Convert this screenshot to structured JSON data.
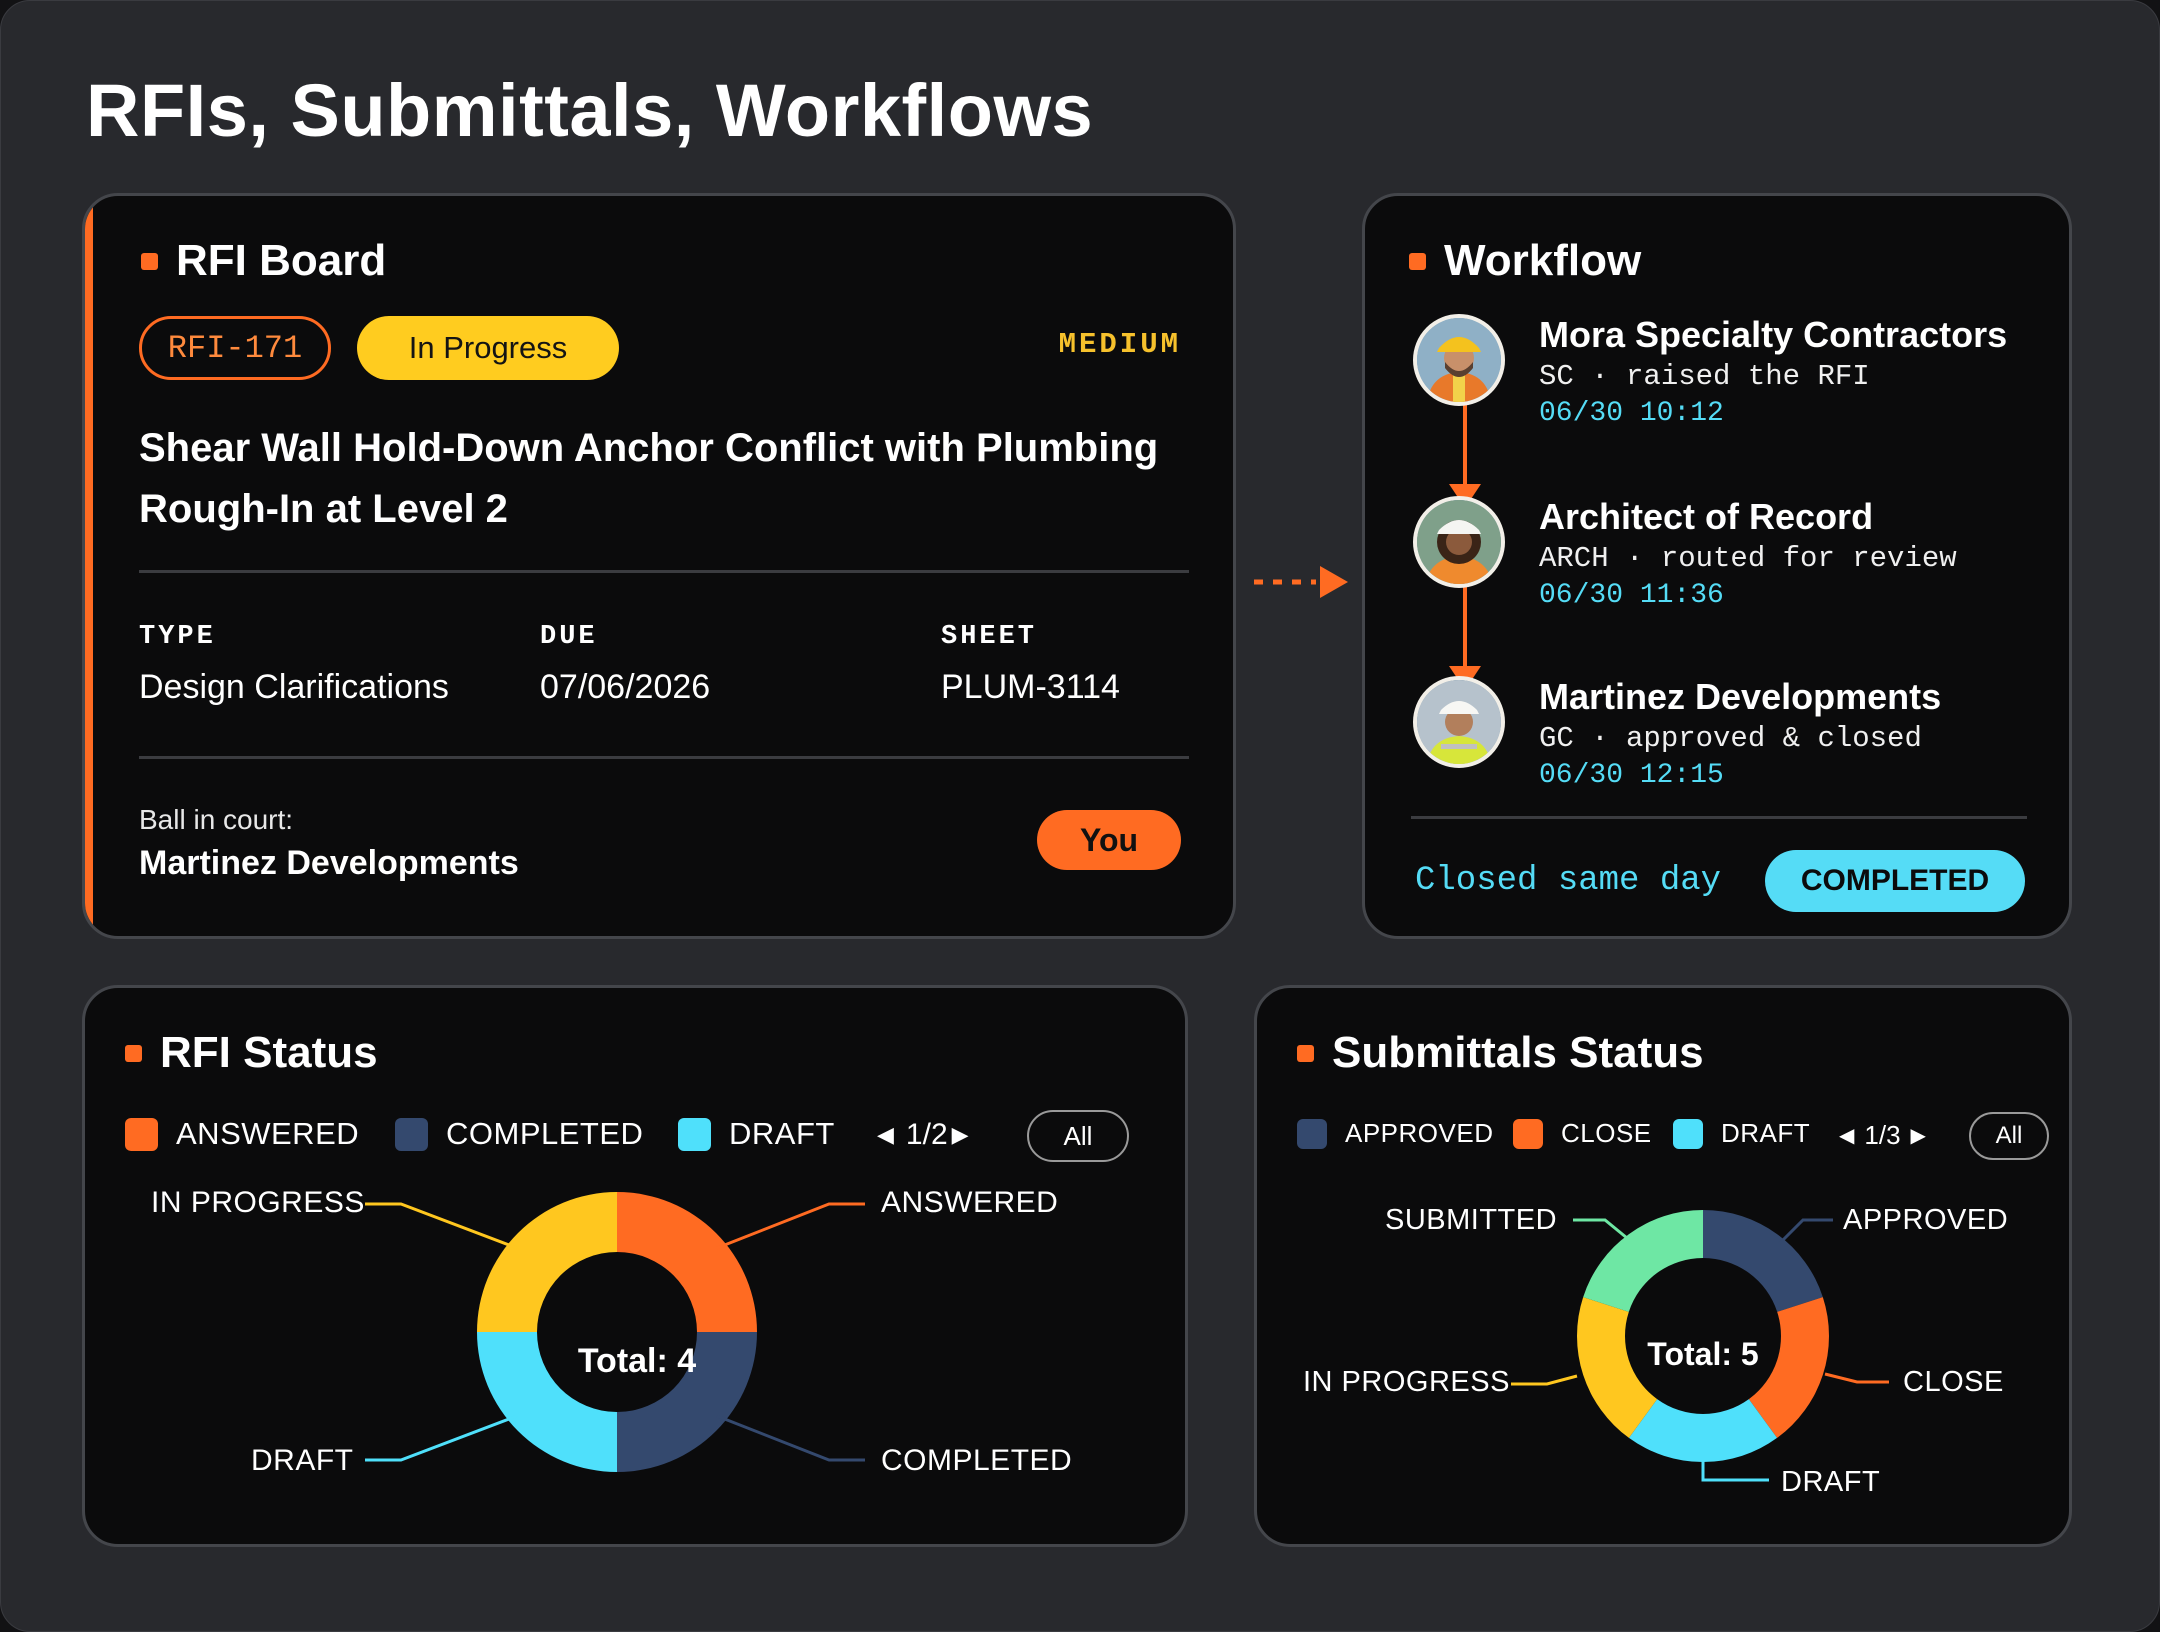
{
  "page": {
    "title": "RFIs, Submittals, Workflows"
  },
  "rfi_board": {
    "title": "RFI Board",
    "id": "RFI-171",
    "status": "In Progress",
    "priority": "MEDIUM",
    "subject": "Shear Wall Hold-Down Anchor Conflict with Plumbing Rough-In at Level 2",
    "meta": [
      {
        "label": "TYPE",
        "value": "Design Clarifications"
      },
      {
        "label": "DUE",
        "value": "07/06/2026"
      },
      {
        "label": "SHEET",
        "value": "PLUM-3114"
      }
    ],
    "ball_in_court_label": "Ball in court:",
    "ball_in_court_value": "Martinez Developments",
    "you_label": "You"
  },
  "workflow": {
    "title": "Workflow",
    "steps": [
      {
        "name": "Mora Specialty Contractors",
        "role": "SC · raised the RFI",
        "time": "06/30 10:12",
        "avatar": "worker-avatar"
      },
      {
        "name": "Architect of Record",
        "role": "ARCH · routed for review",
        "time": "06/30 11:36",
        "avatar": "architect-avatar"
      },
      {
        "name": "Martinez Developments",
        "role": "GC · approved & closed",
        "time": "06/30 12:15",
        "avatar": "gc-avatar"
      }
    ],
    "summary": "Closed same day",
    "badge": "COMPLETED"
  },
  "rfi_status": {
    "title": "RFI Status",
    "legend": [
      {
        "label": "ANSWERED",
        "color": "#ff6b22"
      },
      {
        "label": "COMPLETED",
        "color": "#34496e"
      },
      {
        "label": "DRAFT",
        "color": "#4fe0fb"
      }
    ],
    "pager": "1/2",
    "all_label": "All",
    "total_label": "Total: 4"
  },
  "submittals_status": {
    "title": "Submittals Status",
    "legend": [
      {
        "label": "APPROVED",
        "color": "#34496e"
      },
      {
        "label": "CLOSE",
        "color": "#ff6b22"
      },
      {
        "label": "DRAFT",
        "color": "#4fe0fb"
      }
    ],
    "pager": "1/3",
    "all_label": "All",
    "total_label": "Total: 5"
  },
  "chart_data": [
    {
      "type": "pie",
      "donut": true,
      "total": 4,
      "categories": [
        "ANSWERED",
        "COMPLETED",
        "DRAFT",
        "IN PROGRESS"
      ],
      "values": [
        1,
        1,
        1,
        1
      ],
      "colors": [
        "#ff6b22",
        "#34496e",
        "#4fe0fb",
        "#ffc71f"
      ]
    },
    {
      "type": "pie",
      "donut": true,
      "total": 5,
      "categories": [
        "APPROVED",
        "CLOSE",
        "DRAFT",
        "IN PROGRESS",
        "SUBMITTED"
      ],
      "values": [
        1,
        1,
        1,
        1,
        1
      ],
      "colors": [
        "#34496e",
        "#ff6b22",
        "#4fe0fb",
        "#ffc71f",
        "#6ee7a4"
      ]
    }
  ]
}
